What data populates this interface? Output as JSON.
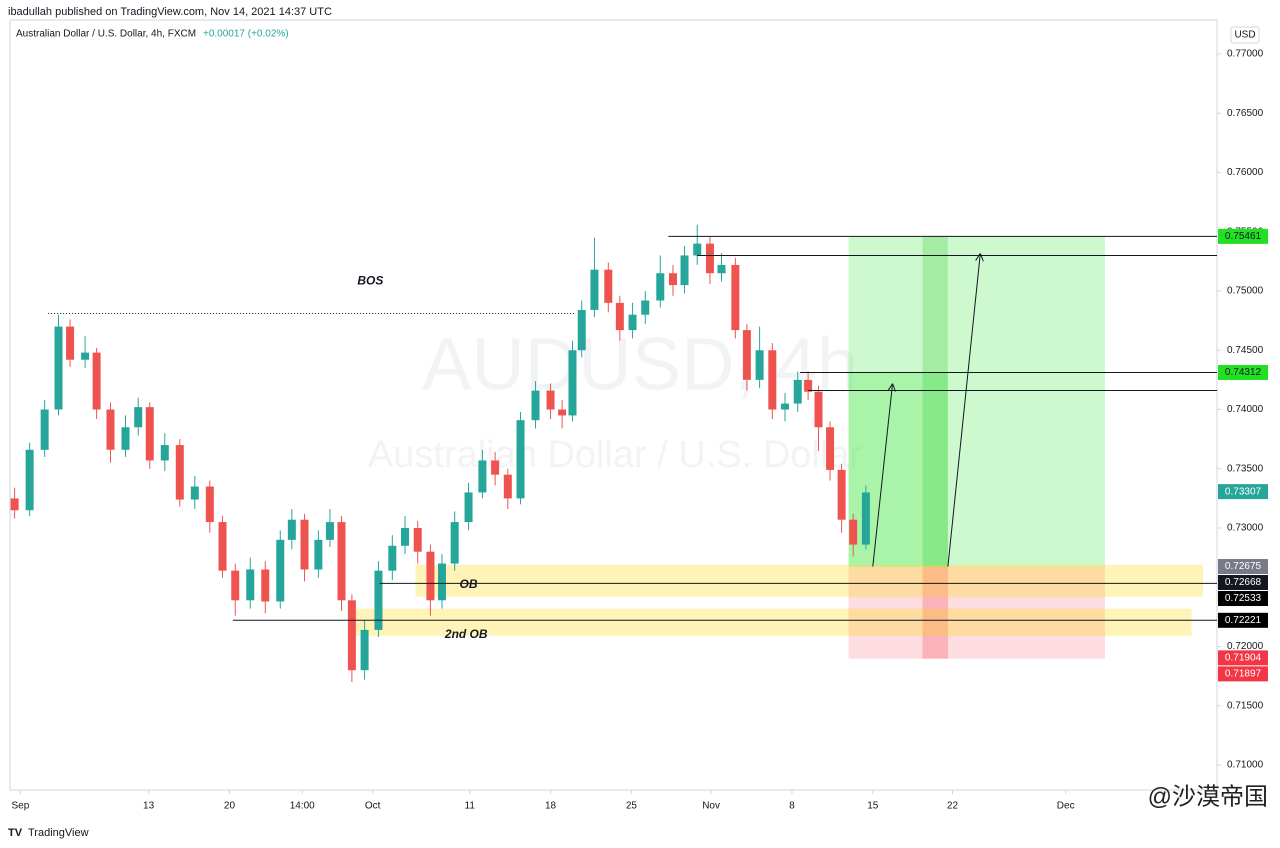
{
  "header": {
    "published": "ibadullah published on TradingView.com, Nov 14, 2021 14:37 UTC",
    "symbol": "Australian Dollar / U.S. Dollar, 4h, FXCM",
    "change": "+0.00017 (+0.02%)",
    "watermark_symbol": "AUDUSD, 4h",
    "watermark_name": "Australian Dollar / U.S. Dollar",
    "currency": "USD"
  },
  "footer": {
    "brand": "TradingView",
    "credit": "@沙漠帝国"
  },
  "chart_data": {
    "type": "candlestick",
    "up_color": "#26a69a",
    "down_color": "#ef5350",
    "x": [
      0.4,
      1.7,
      3.0,
      4.2,
      5.2,
      6.5,
      7.5,
      8.7,
      10.0,
      11.1,
      12.1,
      13.4,
      14.7,
      16.0,
      17.3,
      18.4,
      19.5,
      20.8,
      22.1,
      23.4,
      24.4,
      25.5,
      26.7,
      27.7,
      28.7,
      29.6,
      30.7,
      31.9,
      33.1,
      34.2,
      35.3,
      36.4,
      37.4,
      38.5,
      39.7,
      40.9,
      42.0,
      43.1,
      44.2,
      45.5,
      46.8,
      47.8,
      48.7,
      49.5,
      50.6,
      51.8,
      52.8,
      53.9,
      55.0,
      56.3,
      57.4,
      58.4,
      59.5,
      60.6,
      61.6,
      62.8,
      63.8,
      64.9,
      66.0,
      67.1,
      68.2,
      69.1,
      70.0,
      71.0,
      72.0,
      73.0,
      74.1
    ],
    "open": [
      0.7325,
      0.7315,
      0.7366,
      0.74,
      0.747,
      0.7442,
      0.7448,
      0.74,
      0.7366,
      0.7385,
      0.7402,
      0.7357,
      0.737,
      0.7324,
      0.7335,
      0.7305,
      0.7264,
      0.7239,
      0.7265,
      0.7238,
      0.729,
      0.7307,
      0.7265,
      0.729,
      0.7305,
      0.7239,
      0.718,
      0.7214,
      0.7264,
      0.7285,
      0.73,
      0.728,
      0.7239,
      0.727,
      0.7305,
      0.733,
      0.7357,
      0.7345,
      0.7325,
      0.7391,
      0.7416,
      0.74,
      0.7395,
      0.745,
      0.7484,
      0.7518,
      0.749,
      0.7467,
      0.748,
      0.7492,
      0.7515,
      0.7505,
      0.753,
      0.754,
      0.7515,
      0.7522,
      0.7467,
      0.7425,
      0.745,
      0.74,
      0.7405,
      0.7425,
      0.7415,
      0.7385,
      0.7349,
      0.7307,
      0.7286
    ],
    "high": [
      0.7334,
      0.7372,
      0.7408,
      0.748,
      0.7476,
      0.7462,
      0.7452,
      0.7406,
      0.7395,
      0.741,
      0.7406,
      0.738,
      0.7375,
      0.7344,
      0.734,
      0.731,
      0.727,
      0.7275,
      0.7272,
      0.7298,
      0.7316,
      0.7312,
      0.7298,
      0.7316,
      0.731,
      0.7244,
      0.7222,
      0.7272,
      0.7294,
      0.731,
      0.7306,
      0.7286,
      0.7278,
      0.7314,
      0.7338,
      0.7366,
      0.7364,
      0.735,
      0.7398,
      0.7424,
      0.7422,
      0.7408,
      0.7458,
      0.7492,
      0.7545,
      0.7524,
      0.7496,
      0.749,
      0.75,
      0.753,
      0.7522,
      0.7538,
      0.7556,
      0.7546,
      0.7532,
      0.7528,
      0.7472,
      0.747,
      0.7456,
      0.7414,
      0.7432,
      0.7432,
      0.742,
      0.739,
      0.7354,
      0.7312,
      0.7336
    ],
    "low": [
      0.7308,
      0.731,
      0.736,
      0.7395,
      0.7436,
      0.7435,
      0.7392,
      0.7355,
      0.736,
      0.7378,
      0.735,
      0.7348,
      0.7318,
      0.7316,
      0.7296,
      0.7258,
      0.7226,
      0.7232,
      0.7228,
      0.7232,
      0.7282,
      0.7255,
      0.7258,
      0.7284,
      0.723,
      0.717,
      0.7172,
      0.7208,
      0.7256,
      0.7278,
      0.727,
      0.7226,
      0.7232,
      0.7264,
      0.7298,
      0.7325,
      0.7336,
      0.7316,
      0.732,
      0.7384,
      0.7392,
      0.7384,
      0.739,
      0.7444,
      0.7478,
      0.7482,
      0.7458,
      0.746,
      0.7472,
      0.7486,
      0.7496,
      0.7498,
      0.7522,
      0.7506,
      0.7508,
      0.746,
      0.7416,
      0.7418,
      0.7392,
      0.739,
      0.7398,
      0.7408,
      0.7365,
      0.734,
      0.7296,
      0.7276,
      0.7282
    ],
    "close": [
      0.7315,
      0.7366,
      0.74,
      0.747,
      0.7442,
      0.7448,
      0.74,
      0.7366,
      0.7385,
      0.7402,
      0.7357,
      0.737,
      0.7324,
      0.7335,
      0.7305,
      0.7264,
      0.7239,
      0.7265,
      0.7238,
      0.729,
      0.7307,
      0.7265,
      0.729,
      0.7305,
      0.7239,
      0.718,
      0.7214,
      0.7264,
      0.7285,
      0.73,
      0.728,
      0.7239,
      0.727,
      0.7305,
      0.733,
      0.7357,
      0.7345,
      0.7325,
      0.7391,
      0.7416,
      0.74,
      0.7395,
      0.745,
      0.7484,
      0.7518,
      0.749,
      0.7467,
      0.748,
      0.7492,
      0.7515,
      0.7505,
      0.753,
      0.754,
      0.7515,
      0.7522,
      0.7467,
      0.7425,
      0.745,
      0.74,
      0.7405,
      0.7425,
      0.7415,
      0.7385,
      0.7349,
      0.7307,
      0.7286,
      0.733
    ],
    "xlim": [
      0,
      104.5
    ],
    "xticks": [
      {
        "value": 0.9,
        "label": "Sep"
      },
      {
        "value": 12.0,
        "label": "13"
      },
      {
        "value": 19.0,
        "label": "20"
      },
      {
        "value": 25.3,
        "label": "14:00"
      },
      {
        "value": 31.4,
        "label": "Oct"
      },
      {
        "value": 39.8,
        "label": "11"
      },
      {
        "value": 46.8,
        "label": "18"
      },
      {
        "value": 53.8,
        "label": "25"
      },
      {
        "value": 60.7,
        "label": "Nov"
      },
      {
        "value": 67.7,
        "label": "8"
      },
      {
        "value": 74.7,
        "label": "15"
      },
      {
        "value": 81.6,
        "label": "22"
      },
      {
        "value": 91.4,
        "label": "Dec"
      }
    ],
    "ylim": [
      0.70789,
      0.77287
    ],
    "yticks": [
      {
        "value": 0.77,
        "label": "0.77000"
      },
      {
        "value": 0.765,
        "label": "0.76500"
      },
      {
        "value": 0.76,
        "label": "0.76000"
      },
      {
        "value": 0.755,
        "label": "0.75500"
      },
      {
        "value": 0.75,
        "label": "0.75000"
      },
      {
        "value": 0.745,
        "label": "0.74500"
      },
      {
        "value": 0.74,
        "label": "0.74000"
      },
      {
        "value": 0.735,
        "label": "0.73500"
      },
      {
        "value": 0.73,
        "label": "0.73000"
      },
      {
        "value": 0.725,
        "label": "0.72500"
      },
      {
        "value": 0.72,
        "label": "0.72000"
      },
      {
        "value": 0.715,
        "label": "0.71500"
      },
      {
        "value": 0.71,
        "label": "0.71000"
      }
    ],
    "price_labels": [
      {
        "value": 0.75461,
        "color": "#22e022",
        "text_color": "#131722"
      },
      {
        "value": 0.74312,
        "color": "#22e022",
        "text_color": "#131722"
      },
      {
        "value": 0.73307,
        "color": "#26a69a",
        "text_color": "#ffffff"
      },
      {
        "value": 0.72675,
        "color": "#787b86",
        "text_color": "#ffffff"
      },
      {
        "value": 0.72668,
        "color": "#131722",
        "text_color": "#ffffff"
      },
      {
        "value": 0.72533,
        "color": "#000000",
        "text_color": "#ffffff"
      },
      {
        "value": 0.72221,
        "color": "#000000",
        "text_color": "#ffffff"
      },
      {
        "value": 0.71904,
        "color": "#f23645",
        "text_color": "#ffffff"
      },
      {
        "value": 0.71897,
        "color": "#f23645",
        "text_color": "#ffffff"
      }
    ],
    "boxes": [
      {
        "x": [
          72.6,
          94.8
        ],
        "price": [
          0.75461,
          0.72675
        ],
        "color": "rgba(60,230,60,0.25)"
      },
      {
        "x": [
          72.6,
          81.2
        ],
        "price": [
          0.74312,
          0.72675
        ],
        "color": "rgba(60,230,60,0.25)"
      },
      {
        "x": [
          79.0,
          81.2
        ],
        "price": [
          0.75461,
          0.72675
        ],
        "color": "rgba(40,200,40,0.25)"
      },
      {
        "x": [
          72.6,
          94.8
        ],
        "price": [
          0.72675,
          0.71897
        ],
        "color": "rgba(242,54,69,0.17)"
      },
      {
        "x": [
          79.0,
          81.2
        ],
        "price": [
          0.72675,
          0.71897
        ],
        "color": "rgba(242,54,69,0.25)"
      },
      {
        "x": [
          35.1,
          103.3
        ],
        "price": [
          0.7269,
          0.7242
        ],
        "color": "rgba(255,215,0,0.28)"
      },
      {
        "x": [
          29.3,
          102.3
        ],
        "price": [
          0.7232,
          0.7209
        ],
        "color": "rgba(255,215,0,0.28)"
      }
    ],
    "hlines": [
      {
        "price": 0.7481,
        "x": [
          3.3,
          48.9
        ],
        "dotted": true
      },
      {
        "price": 0.75461,
        "x": [
          57.0,
          104.5
        ],
        "dotted": false
      },
      {
        "price": 0.753,
        "x": [
          59.5,
          104.5
        ],
        "dotted": false
      },
      {
        "price": 0.74312,
        "x": [
          68.4,
          104.5
        ],
        "dotted": false
      },
      {
        "price": 0.7416,
        "x": [
          69.1,
          104.5
        ],
        "dotted": false
      },
      {
        "price": 0.72533,
        "x": [
          32.0,
          104.5
        ],
        "dotted": false
      },
      {
        "price": 0.72221,
        "x": [
          19.3,
          104.5
        ],
        "dotted": false
      }
    ],
    "arrows": [
      {
        "x": [
          74.7,
          76.4
        ],
        "price": [
          0.72675,
          0.7421
        ]
      },
      {
        "x": [
          81.2,
          84.0
        ],
        "price": [
          0.72675,
          0.7531
        ]
      }
    ],
    "annotations": [
      {
        "text": "BOS",
        "x": 31.2,
        "price": 0.7508
      },
      {
        "text": "OB",
        "x": 39.7,
        "price": 0.7252
      },
      {
        "text": "2nd OB",
        "x": 39.5,
        "price": 0.721
      }
    ]
  }
}
